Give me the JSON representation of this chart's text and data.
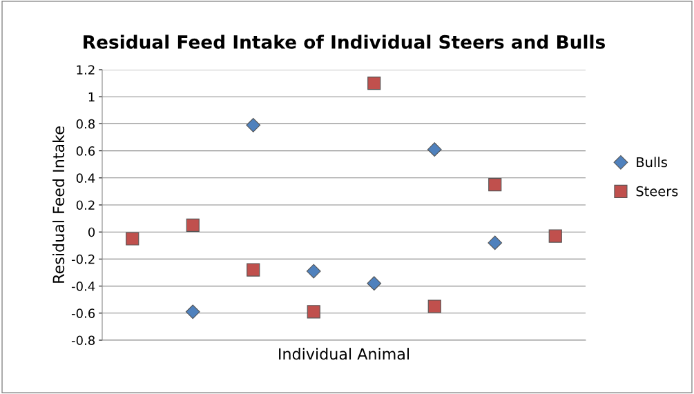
{
  "chart_data": {
    "type": "scatter",
    "title": "Residual Feed Intake of Individual Steers and Bulls",
    "xlabel": "Individual Animal",
    "ylabel": "Residual Feed Intake",
    "categories": [
      null,
      null,
      null,
      null,
      null,
      null,
      null,
      null
    ],
    "series": [
      {
        "name": "Bulls",
        "color": "#4f81bd",
        "marker": "diamond",
        "values": [
          null,
          -0.59,
          0.79,
          -0.29,
          -0.38,
          0.61,
          -0.08,
          null
        ]
      },
      {
        "name": "Steers",
        "color": "#c0504d",
        "marker": "square",
        "values": [
          -0.05,
          0.05,
          -0.28,
          -0.59,
          1.1,
          -0.55,
          0.35,
          -0.03
        ]
      }
    ],
    "ylim": [
      -0.8,
      1.2
    ],
    "yticks": [
      -0.8,
      -0.6,
      -0.4,
      -0.2,
      0,
      0.2,
      0.4,
      0.6,
      0.8,
      1,
      1.2
    ],
    "grid": "y",
    "legend": "right",
    "tick_labels": "y"
  }
}
